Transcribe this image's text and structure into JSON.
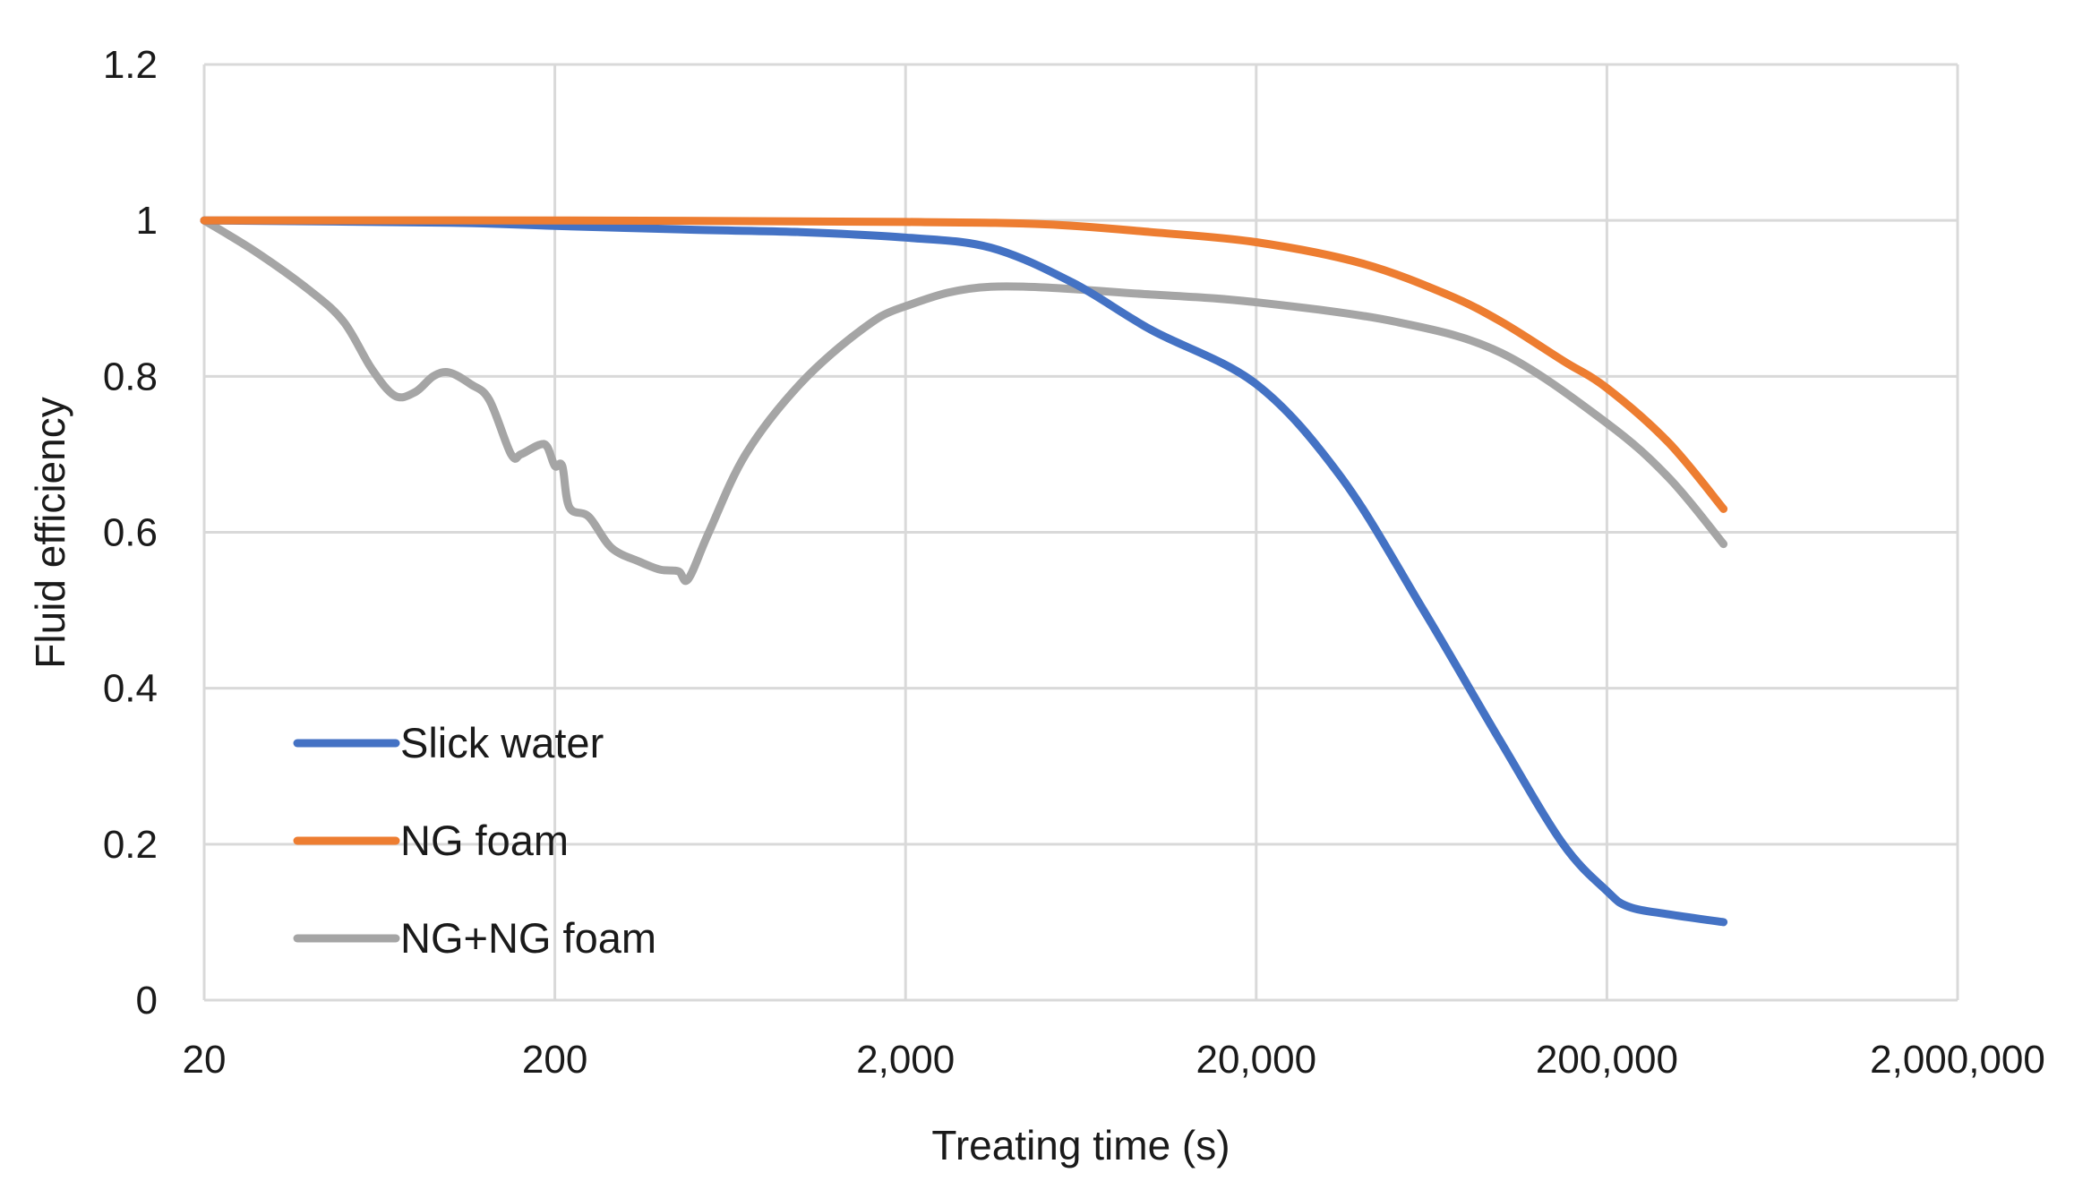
{
  "chart_data": {
    "type": "line",
    "x_scale": "log",
    "title": "",
    "xlabel": "Treating time (s)",
    "ylabel": "Fluid efficiency",
    "xlim": [
      20,
      2000000
    ],
    "ylim": [
      0,
      1.2
    ],
    "x_ticks": [
      20,
      200,
      2000,
      20000,
      200000,
      2000000
    ],
    "x_tick_labels": [
      "20",
      "200",
      "2,000",
      "20,000",
      "200,000",
      "2,000,000"
    ],
    "y_ticks": [
      0,
      0.2,
      0.4,
      0.6,
      0.8,
      1.0,
      1.2
    ],
    "y_tick_labels": [
      "0",
      "0.2",
      "0.4",
      "0.6",
      "0.8",
      "1",
      "1.2"
    ],
    "grid": true,
    "legend_position": "bottom-left",
    "series": [
      {
        "name": "Slick water",
        "color": "#4472C4",
        "points": [
          [
            20,
            1.0
          ],
          [
            100,
            0.997
          ],
          [
            200,
            0.993
          ],
          [
            500,
            0.988
          ],
          [
            1000,
            0.985
          ],
          [
            2000,
            0.978
          ],
          [
            3500,
            0.965
          ],
          [
            6000,
            0.92
          ],
          [
            10000,
            0.86
          ],
          [
            20000,
            0.79
          ],
          [
            35000,
            0.67
          ],
          [
            60000,
            0.5
          ],
          [
            100000,
            0.33
          ],
          [
            150000,
            0.2
          ],
          [
            200000,
            0.14
          ],
          [
            230000,
            0.12
          ],
          [
            300000,
            0.11
          ],
          [
            430000,
            0.1
          ]
        ]
      },
      {
        "name": "NG foam",
        "color": "#ED7D31",
        "points": [
          [
            20,
            1.0
          ],
          [
            200,
            1.0
          ],
          [
            2000,
            0.998
          ],
          [
            5000,
            0.995
          ],
          [
            10000,
            0.985
          ],
          [
            20000,
            0.972
          ],
          [
            40000,
            0.945
          ],
          [
            70000,
            0.905
          ],
          [
            100000,
            0.87
          ],
          [
            150000,
            0.82
          ],
          [
            200000,
            0.785
          ],
          [
            300000,
            0.715
          ],
          [
            430000,
            0.63
          ]
        ]
      },
      {
        "name": "NG+NG foam",
        "color": "#A5A5A5",
        "points": [
          [
            20,
            1.0
          ],
          [
            28,
            0.96
          ],
          [
            40,
            0.91
          ],
          [
            50,
            0.87
          ],
          [
            60,
            0.81
          ],
          [
            70,
            0.775
          ],
          [
            80,
            0.78
          ],
          [
            90,
            0.8
          ],
          [
            100,
            0.805
          ],
          [
            115,
            0.79
          ],
          [
            130,
            0.77
          ],
          [
            150,
            0.7
          ],
          [
            160,
            0.7
          ],
          [
            180,
            0.712
          ],
          [
            190,
            0.71
          ],
          [
            200,
            0.685
          ],
          [
            210,
            0.685
          ],
          [
            220,
            0.632
          ],
          [
            250,
            0.62
          ],
          [
            290,
            0.58
          ],
          [
            350,
            0.562
          ],
          [
            400,
            0.552
          ],
          [
            450,
            0.55
          ],
          [
            480,
            0.54
          ],
          [
            550,
            0.6
          ],
          [
            700,
            0.7
          ],
          [
            1000,
            0.79
          ],
          [
            1500,
            0.86
          ],
          [
            2000,
            0.89
          ],
          [
            3500,
            0.915
          ],
          [
            10000,
            0.905
          ],
          [
            20000,
            0.895
          ],
          [
            50000,
            0.87
          ],
          [
            100000,
            0.83
          ],
          [
            200000,
            0.74
          ],
          [
            300000,
            0.67
          ],
          [
            430000,
            0.585
          ]
        ]
      }
    ]
  }
}
